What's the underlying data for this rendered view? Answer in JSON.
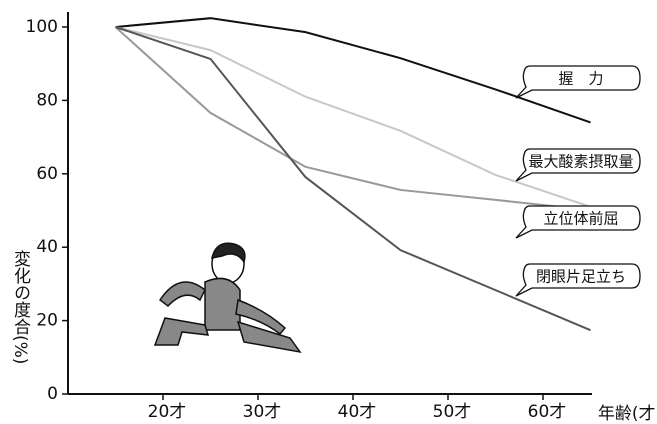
{
  "chart_data": {
    "type": "line",
    "x_label": "年齢(才)",
    "y_label": "変化の度合(%)",
    "xlim": [
      10,
      65
    ],
    "xticks": [
      {
        "value": 20,
        "label": "20才"
      },
      {
        "value": 30,
        "label": "30才"
      },
      {
        "value": 40,
        "label": "40才"
      },
      {
        "value": 50,
        "label": "50才"
      },
      {
        "value": 60,
        "label": "60才"
      }
    ],
    "ylim": [
      0,
      100
    ],
    "yticks": [
      0,
      20,
      40,
      60,
      80,
      100
    ],
    "x": [
      15,
      25,
      35,
      45,
      55,
      65
    ],
    "series": [
      {
        "name": "握　力",
        "color": "#111111",
        "values": [
          100,
          102.4,
          98.6,
          91.5,
          83,
          74
        ]
      },
      {
        "name": "最大酸素摂取量",
        "color": "#c8c8c8",
        "values": [
          100,
          93.7,
          81,
          71.7,
          59.7,
          51
        ]
      },
      {
        "name": "立位体前屈",
        "color": "#999999",
        "values": [
          100,
          76.6,
          61.9,
          55.6,
          52.9,
          50.1
        ]
      },
      {
        "name": "閉眼片足立ち",
        "color": "#555555",
        "values": [
          100,
          91.3,
          59.1,
          39.2,
          28.3,
          17.4
        ]
      }
    ]
  }
}
